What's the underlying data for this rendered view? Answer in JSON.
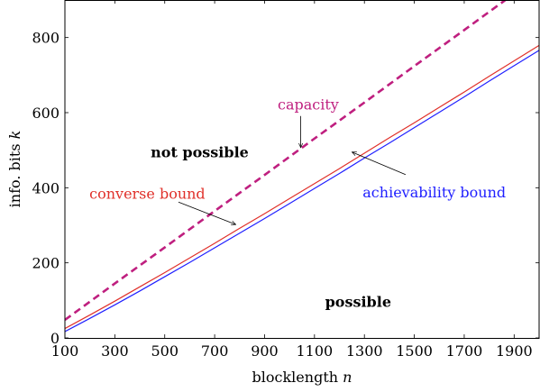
{
  "chart_data": {
    "type": "line",
    "xlabel": "blocklength",
    "xlabel_var": "n",
    "ylabel": "info. bits",
    "ylabel_var": "k",
    "xlim": [
      100,
      2000
    ],
    "ylim": [
      0,
      900
    ],
    "xticks": [
      100,
      300,
      500,
      700,
      900,
      1100,
      1300,
      1500,
      1700,
      1900
    ],
    "yticks": [
      0,
      200,
      400,
      600,
      800
    ],
    "grid": false,
    "series": [
      {
        "name": "capacity",
        "color": "#bf1f7f",
        "style": "dashed",
        "x": [
          100,
          300,
          500,
          700,
          900,
          1100,
          1300,
          1500,
          1700,
          1900
        ],
        "y": [
          48,
          145,
          241,
          338,
          434,
          531,
          627,
          724,
          820,
          917
        ]
      },
      {
        "name": "converse bound",
        "color": "#e0302a",
        "style": "solid",
        "x": [
          100,
          200,
          300,
          400,
          500,
          600,
          700,
          800,
          900,
          1000,
          1100,
          1200,
          1300,
          1400,
          1500,
          1600,
          1700,
          1800,
          1900,
          2000
        ],
        "y": [
          25,
          61,
          98,
          136,
          174,
          213,
          252,
          292,
          331,
          371,
          411,
          451,
          492,
          533,
          573,
          614,
          655,
          697,
          738,
          779
        ]
      },
      {
        "name": "achievability bound",
        "color": "#2020ff",
        "style": "solid",
        "x": [
          100,
          200,
          300,
          400,
          500,
          600,
          700,
          800,
          900,
          1000,
          1100,
          1200,
          1300,
          1400,
          1500,
          1600,
          1700,
          1800,
          1900,
          2000
        ],
        "y": [
          17,
          52,
          88,
          125,
          163,
          201,
          240,
          279,
          318,
          358,
          398,
          438,
          479,
          519,
          560,
          601,
          642,
          684,
          725,
          766
        ]
      }
    ],
    "annotations": [
      {
        "text": "capacity",
        "color": "#bf1f7f",
        "label_at": [
          1075,
          620
        ],
        "arrow_to": [
          1045,
          507
        ]
      },
      {
        "text": "converse bound",
        "color": "#e0302a",
        "label_at": [
          430,
          383
        ],
        "arrow_from": [
          555,
          362
        ],
        "arrow_to": [
          785,
          302
        ]
      },
      {
        "text": "achievability bound",
        "color": "#2020ff",
        "label_at": [
          1580,
          387
        ],
        "arrow_from": [
          1465,
          435
        ],
        "arrow_to": [
          1250,
          495
        ]
      },
      {
        "text": "not possible",
        "color": "#000000",
        "label_at": [
          640,
          493
        ]
      },
      {
        "text": "possible",
        "color": "#000000",
        "label_at": [
          1275,
          95
        ]
      }
    ]
  }
}
